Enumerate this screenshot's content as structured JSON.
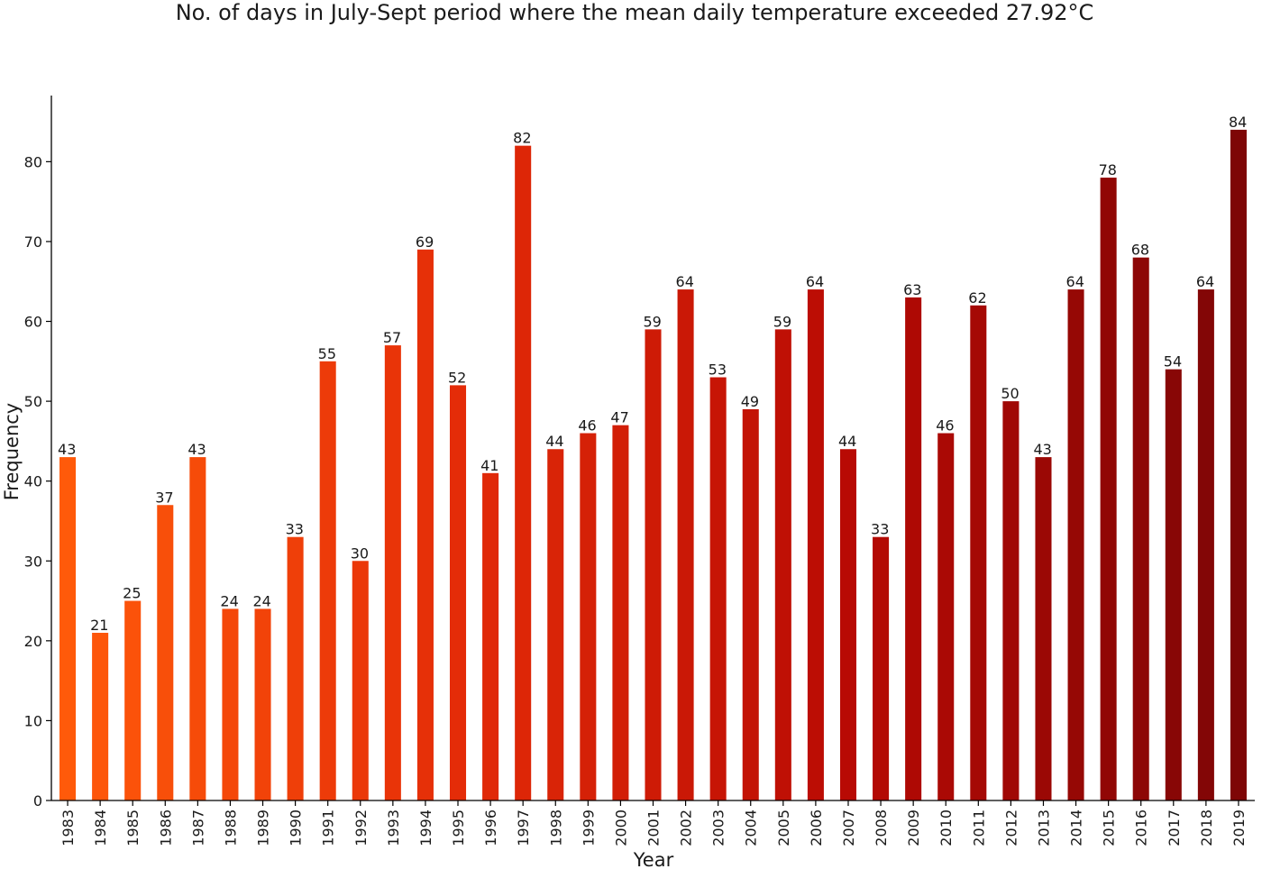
{
  "chart_data": {
    "type": "bar",
    "title": "No. of days in July-Sept period where the mean daily temperature exceeded 27.92°C",
    "xlabel": "Year",
    "ylabel": "Frequency",
    "ylim": [
      0,
      88
    ],
    "yticks": [
      0,
      10,
      20,
      30,
      40,
      50,
      60,
      70,
      80
    ],
    "grid": false,
    "categories": [
      "1983",
      "1984",
      "1985",
      "1986",
      "1987",
      "1988",
      "1989",
      "1990",
      "1991",
      "1992",
      "1993",
      "1994",
      "1995",
      "1996",
      "1997",
      "1998",
      "1999",
      "2000",
      "2001",
      "2002",
      "2003",
      "2004",
      "2005",
      "2006",
      "2007",
      "2008",
      "2009",
      "2010",
      "2011",
      "2012",
      "2013",
      "2014",
      "2015",
      "2016",
      "2017",
      "2018",
      "2019"
    ],
    "values": [
      43,
      21,
      25,
      37,
      43,
      24,
      24,
      33,
      55,
      30,
      57,
      69,
      52,
      41,
      82,
      44,
      46,
      47,
      59,
      64,
      53,
      49,
      59,
      64,
      44,
      33,
      63,
      46,
      62,
      50,
      43,
      64,
      78,
      68,
      54,
      64,
      84
    ],
    "color_gradient": [
      "#ff5a0a",
      "#e42c08",
      "#b80a04",
      "#7e0606"
    ]
  }
}
